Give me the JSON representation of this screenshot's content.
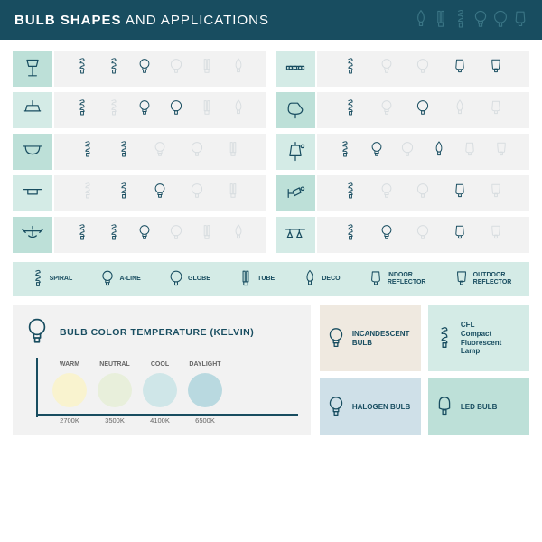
{
  "header": {
    "title_bold": "BULB SHAPES",
    "title_rest": " AND APPLICATIONS"
  },
  "fixture_colors": [
    "#bde0d8",
    "#d4ebe6",
    "#bde0d8",
    "#d4ebe6",
    "#bde0d8",
    "#d4ebe6",
    "#bde0d8",
    "#d4ebe6",
    "#bde0d8",
    "#d4ebe6"
  ],
  "legend": [
    {
      "label": "SPIRAL",
      "icon": "spiral"
    },
    {
      "label": "A-LINE",
      "icon": "aline"
    },
    {
      "label": "GLOBE",
      "icon": "globe"
    },
    {
      "label": "TUBE",
      "icon": "tube"
    },
    {
      "label": "DECO",
      "icon": "deco"
    },
    {
      "label": "INDOOR\nREFLECTOR",
      "icon": "reflector"
    },
    {
      "label": "OUTDOOR\nREFLECTOR",
      "icon": "reflector2"
    }
  ],
  "temperature": {
    "title": "BULB COLOR TEMPERATURE (KELVIN)",
    "scale": [
      {
        "label": "WARM",
        "value": "2700K",
        "color": "#f9f3cf"
      },
      {
        "label": "NEUTRAL",
        "value": "3500K",
        "color": "#e8efdb"
      },
      {
        "label": "COOL",
        "value": "4100K",
        "color": "#cfe6e8"
      },
      {
        "label": "DAYLIGHT",
        "value": "6500K",
        "color": "#b9d9e0"
      }
    ]
  },
  "types": [
    {
      "label": "INCANDESCENT\nBULB",
      "bg": "#efe9e0",
      "icon": "aline"
    },
    {
      "label": "CFL\nCompact Fluorescent\nLamp",
      "bg": "#d4ebe6",
      "icon": "spiral"
    },
    {
      "label": "HALOGEN BULB",
      "bg": "#cfe0e8",
      "icon": "aline"
    },
    {
      "label": "LED BULB",
      "bg": "#bde0d8",
      "icon": "led"
    }
  ]
}
